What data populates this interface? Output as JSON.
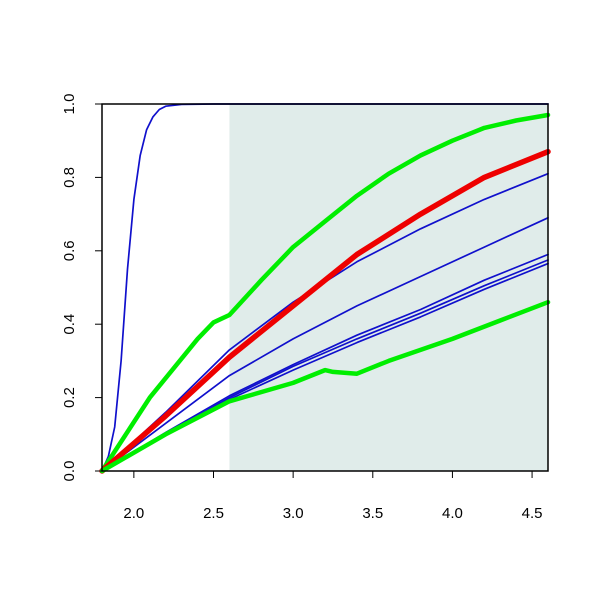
{
  "chart_data": {
    "type": "line",
    "title": "",
    "xlabel": "",
    "ylabel": "",
    "xlim": [
      1.8,
      4.6
    ],
    "ylim": [
      0,
      1
    ],
    "grid": false,
    "legend": "none",
    "x_ticks": [
      "2.0",
      "2.5",
      "3.0",
      "3.5",
      "4.0",
      "4.5"
    ],
    "y_ticks": [
      "0.0",
      "0.2",
      "0.4",
      "0.6",
      "0.8",
      "1.0"
    ],
    "shaded_region": {
      "x_from": 2.6,
      "x_to": 4.6,
      "color": "#e0ecea"
    },
    "series": [
      {
        "color": "#1010cc",
        "width": 1.7,
        "points": [
          [
            1.8,
            0
          ],
          [
            1.84,
            0.04
          ],
          [
            1.88,
            0.12
          ],
          [
            1.92,
            0.3
          ],
          [
            1.96,
            0.55
          ],
          [
            2.0,
            0.74
          ],
          [
            2.04,
            0.86
          ],
          [
            2.08,
            0.93
          ],
          [
            2.12,
            0.965
          ],
          [
            2.16,
            0.985
          ],
          [
            2.2,
            0.994
          ],
          [
            2.3,
            0.999
          ],
          [
            2.5,
            1.0
          ],
          [
            4.6,
            1.0
          ]
        ]
      },
      {
        "color": "#1010cc",
        "width": 1.7,
        "points": [
          [
            1.8,
            0
          ],
          [
            2.2,
            0.16
          ],
          [
            2.6,
            0.33
          ],
          [
            3.0,
            0.46
          ],
          [
            3.4,
            0.57
          ],
          [
            3.8,
            0.66
          ],
          [
            4.2,
            0.74
          ],
          [
            4.6,
            0.81
          ]
        ]
      },
      {
        "color": "#1010cc",
        "width": 1.7,
        "points": [
          [
            1.8,
            0
          ],
          [
            2.2,
            0.13
          ],
          [
            2.6,
            0.26
          ],
          [
            3.0,
            0.36
          ],
          [
            3.4,
            0.45
          ],
          [
            3.8,
            0.53
          ],
          [
            4.2,
            0.61
          ],
          [
            4.6,
            0.69
          ]
        ]
      },
      {
        "color": "#1010cc",
        "width": 1.7,
        "points": [
          [
            1.8,
            0
          ],
          [
            2.2,
            0.105
          ],
          [
            2.6,
            0.205
          ],
          [
            3.0,
            0.29
          ],
          [
            3.4,
            0.37
          ],
          [
            3.8,
            0.44
          ],
          [
            4.2,
            0.52
          ],
          [
            4.6,
            0.59
          ]
        ]
      },
      {
        "color": "#1010cc",
        "width": 1.7,
        "points": [
          [
            1.8,
            0
          ],
          [
            2.2,
            0.1
          ],
          [
            2.6,
            0.2
          ],
          [
            3.0,
            0.285
          ],
          [
            3.4,
            0.36
          ],
          [
            3.8,
            0.43
          ],
          [
            4.2,
            0.505
          ],
          [
            4.6,
            0.575
          ]
        ]
      },
      {
        "color": "#1010cc",
        "width": 1.7,
        "points": [
          [
            1.8,
            0
          ],
          [
            2.2,
            0.098
          ],
          [
            2.6,
            0.195
          ],
          [
            3.0,
            0.275
          ],
          [
            3.4,
            0.35
          ],
          [
            3.8,
            0.42
          ],
          [
            4.2,
            0.495
          ],
          [
            4.6,
            0.565
          ]
        ]
      },
      {
        "color": "#00ee00",
        "width": 4.5,
        "points": [
          [
            1.8,
            0
          ],
          [
            2.1,
            0.2
          ],
          [
            2.4,
            0.36
          ],
          [
            2.5,
            0.405
          ],
          [
            2.55,
            0.415
          ],
          [
            2.6,
            0.425
          ],
          [
            2.8,
            0.52
          ],
          [
            3.0,
            0.61
          ],
          [
            3.2,
            0.68
          ],
          [
            3.4,
            0.75
          ],
          [
            3.6,
            0.81
          ],
          [
            3.8,
            0.86
          ],
          [
            4.0,
            0.9
          ],
          [
            4.2,
            0.935
          ],
          [
            4.4,
            0.955
          ],
          [
            4.6,
            0.97
          ]
        ]
      },
      {
        "color": "#ee0000",
        "width": 5.5,
        "points": [
          [
            1.8,
            0
          ],
          [
            2.2,
            0.15
          ],
          [
            2.6,
            0.31
          ],
          [
            3.0,
            0.45
          ],
          [
            3.4,
            0.59
          ],
          [
            3.8,
            0.7
          ],
          [
            4.2,
            0.8
          ],
          [
            4.6,
            0.87
          ]
        ]
      },
      {
        "color": "#00ee00",
        "width": 4.5,
        "points": [
          [
            1.8,
            0
          ],
          [
            2.2,
            0.1
          ],
          [
            2.6,
            0.19
          ],
          [
            3.0,
            0.24
          ],
          [
            3.2,
            0.275
          ],
          [
            3.25,
            0.27
          ],
          [
            3.4,
            0.265
          ],
          [
            3.6,
            0.3
          ],
          [
            4.0,
            0.36
          ],
          [
            4.3,
            0.41
          ],
          [
            4.6,
            0.46
          ]
        ]
      }
    ]
  }
}
